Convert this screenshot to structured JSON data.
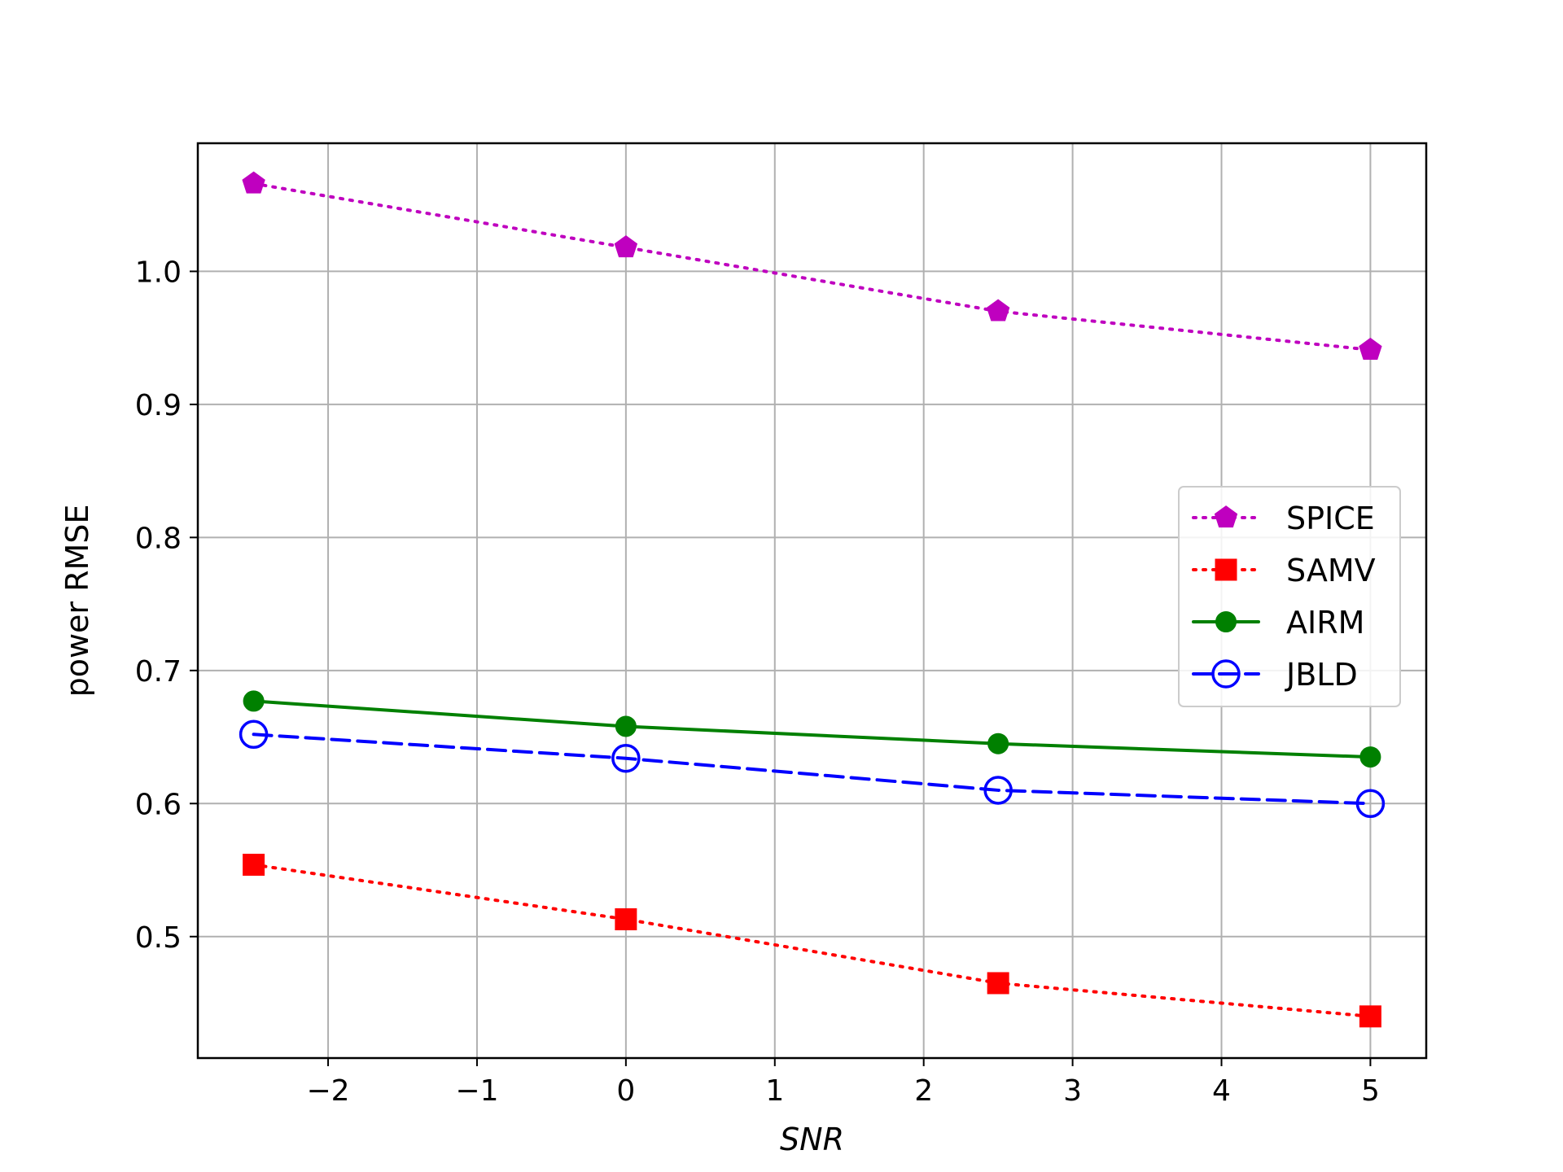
{
  "chart_data": {
    "type": "line",
    "title": "",
    "xlabel": "SNR",
    "ylabel": "power RMSE",
    "x": [
      -2.5,
      0,
      2.5,
      5
    ],
    "xlim": [
      -2.875,
      5.375
    ],
    "ylim": [
      0.4087,
      1.0963
    ],
    "xticks": [
      -2,
      -1,
      0,
      1,
      2,
      3,
      4,
      5
    ],
    "xtick_labels": [
      "−2",
      "−1",
      "0",
      "1",
      "2",
      "3",
      "4",
      "5"
    ],
    "yticks": [
      0.5,
      0.6,
      0.7,
      0.8,
      0.9,
      1.0
    ],
    "ytick_labels": [
      "0.5",
      "0.6",
      "0.7",
      "0.8",
      "0.9",
      "1.0"
    ],
    "grid": true,
    "legend_position": "center-right",
    "series": [
      {
        "name": "SPICE",
        "values": [
          1.066,
          1.018,
          0.97,
          0.941
        ],
        "color": "#bf00bf",
        "line_style": "dotted",
        "marker": "pentagon"
      },
      {
        "name": "SAMV",
        "values": [
          0.554,
          0.513,
          0.465,
          0.44
        ],
        "color": "#ff0000",
        "line_style": "dotted",
        "marker": "square"
      },
      {
        "name": "AIRM",
        "values": [
          0.677,
          0.658,
          0.645,
          0.635
        ],
        "color": "#008000",
        "line_style": "solid",
        "marker": "filled-circle"
      },
      {
        "name": "JBLD",
        "values": [
          0.652,
          0.634,
          0.61,
          0.6
        ],
        "color": "#0000ff",
        "line_style": "dashed",
        "marker": "open-circle"
      }
    ]
  }
}
